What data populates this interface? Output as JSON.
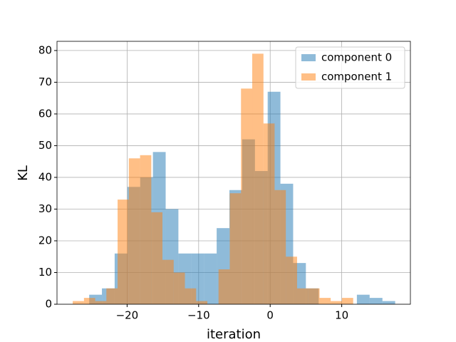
{
  "chart_data": {
    "type": "histogram",
    "xlabel": "iteration",
    "ylabel": "KL",
    "xlim": [
      -29.8,
      19.6
    ],
    "ylim": [
      0,
      82.9
    ],
    "xticks": [
      {
        "value": -20,
        "label": "−20"
      },
      {
        "value": -10,
        "label": "−10"
      },
      0,
      10
    ],
    "yticks": [
      0,
      10,
      20,
      30,
      40,
      50,
      60,
      70,
      80
    ],
    "grid": true,
    "legend": "upper right",
    "series": [
      {
        "name": "component 0",
        "color": "#1f77b4",
        "opacity": 0.5,
        "bins": [
          -25.3,
          -23.52,
          -21.74,
          -19.95,
          -18.17,
          -16.39,
          -14.61,
          -12.83,
          -11.04,
          -9.26,
          -7.48,
          -5.7,
          -3.92,
          -2.13,
          -0.35,
          1.43,
          3.21,
          4.99,
          6.78,
          8.56,
          10.34,
          12.12,
          13.9,
          15.69,
          17.47
        ],
        "values": [
          3,
          5,
          16,
          37,
          40,
          48,
          30,
          16,
          16,
          16,
          24,
          36,
          52,
          42,
          67,
          38,
          13,
          5,
          0,
          0,
          0,
          3,
          2,
          1
        ]
      },
      {
        "name": "component 1",
        "color": "#ff7f0e",
        "opacity": 0.5,
        "bins": [
          -27.6,
          -26.03,
          -24.46,
          -22.9,
          -21.33,
          -19.76,
          -18.19,
          -16.62,
          -15.06,
          -13.49,
          -11.92,
          -10.35,
          -8.78,
          -7.22,
          -5.65,
          -4.08,
          -2.51,
          -0.94,
          0.62,
          2.19,
          3.76,
          5.33,
          6.9,
          8.46,
          10.03,
          11.6
        ],
        "values": [
          1,
          2,
          1,
          5,
          33,
          46,
          47,
          29,
          14,
          10,
          5,
          1,
          0,
          11,
          35,
          68,
          79,
          57,
          36,
          15,
          5,
          5,
          2,
          1,
          2
        ]
      }
    ]
  }
}
